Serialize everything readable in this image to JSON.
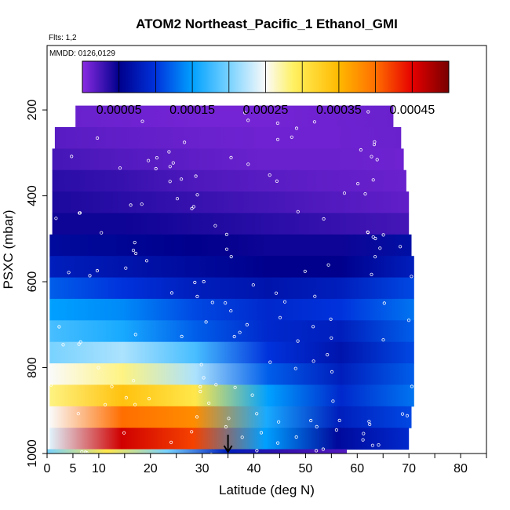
{
  "chart_data": {
    "type": "heatmap",
    "title": "ATOM2 Northeast_Pacific_1 Ethanol_GMI",
    "flights_label": "Flts: 1,2",
    "dates_label": "MMDD: 0126,0129",
    "xlabel": "Latitude (deg N)",
    "ylabel": "PSXC (mbar)",
    "xlim": [
      0,
      85
    ],
    "ylim": [
      1000,
      50
    ],
    "x_ticks": [
      "0",
      "5",
      "10",
      "20",
      "30",
      "40",
      "50",
      "60",
      "70",
      "80"
    ],
    "y_ticks": [
      "200",
      "400",
      "600",
      "800",
      "1000"
    ],
    "colorbar": {
      "range": [
        0,
        0.0005
      ],
      "tick_labels": [
        "0.00005",
        "0.00015",
        "0.00025",
        "0.00035",
        "0.00045"
      ],
      "tick_values": [
        5e-05,
        0.00015,
        0.00025,
        0.00035,
        0.00045
      ]
    },
    "arrow_marker_lat": 35,
    "layers": [
      {
        "p_top": 190,
        "p_bot": 240,
        "lat_min": 5.5,
        "lat_max": 67.0,
        "values": [
          1.2e-05,
          1e-05,
          8e-06,
          8e-06,
          1e-05,
          1.2e-05
        ]
      },
      {
        "p_top": 240,
        "p_bot": 290,
        "lat_min": 1.5,
        "lat_max": 68.5,
        "values": [
          1.8e-05,
          1.5e-05,
          1.2e-05,
          1e-05,
          1e-05,
          1.2e-05
        ]
      },
      {
        "p_top": 290,
        "p_bot": 340,
        "lat_min": 1.0,
        "lat_max": 69.0,
        "values": [
          2.5e-05,
          2e-05,
          1.6e-05,
          1.2e-05,
          1.2e-05,
          1e-05
        ]
      },
      {
        "p_top": 340,
        "p_bot": 390,
        "lat_min": 1.0,
        "lat_max": 69.5,
        "values": [
          3.5e-05,
          3e-05,
          2.2e-05,
          1.8e-05,
          1.5e-05,
          1.2e-05
        ]
      },
      {
        "p_top": 390,
        "p_bot": 440,
        "lat_min": 1.0,
        "lat_max": 70.0,
        "values": [
          4e-05,
          3.5e-05,
          3e-05,
          2.5e-05,
          2e-05,
          1.5e-05
        ]
      },
      {
        "p_top": 440,
        "p_bot": 490,
        "lat_min": 1.0,
        "lat_max": 70.0,
        "values": [
          4.5e-05,
          4.5e-05,
          4e-05,
          3.5e-05,
          3e-05,
          2.5e-05
        ]
      },
      {
        "p_top": 490,
        "p_bot": 540,
        "lat_min": 0.5,
        "lat_max": 70.5,
        "values": [
          6e-05,
          5.5e-05,
          5e-05,
          4.5e-05,
          4.5e-05,
          6.5e-05
        ]
      },
      {
        "p_top": 540,
        "p_bot": 590,
        "lat_min": 0.5,
        "lat_max": 71.0,
        "values": [
          8e-05,
          7e-05,
          6e-05,
          5e-05,
          5e-05,
          8e-05
        ]
      },
      {
        "p_top": 590,
        "p_bot": 640,
        "lat_min": 0.5,
        "lat_max": 71.0,
        "values": [
          0.00012,
          0.0001,
          8e-05,
          7e-05,
          8e-05,
          0.00011
        ]
      },
      {
        "p_top": 640,
        "p_bot": 690,
        "lat_min": 0.5,
        "lat_max": 71.0,
        "values": [
          0.00015,
          0.00014,
          0.00011,
          9e-05,
          0.0001,
          0.00013
        ]
      },
      {
        "p_top": 690,
        "p_bot": 740,
        "lat_min": 0.5,
        "lat_max": 71.0,
        "values": [
          0.00018,
          0.00016,
          0.00012,
          9e-05,
          8e-05,
          0.00012
        ]
      },
      {
        "p_top": 740,
        "p_bot": 790,
        "lat_min": 0.5,
        "lat_max": 71.0,
        "values": [
          0.0002,
          0.00022,
          0.00018,
          0.0001,
          7e-05,
          0.00011
        ]
      },
      {
        "p_top": 790,
        "p_bot": 840,
        "lat_min": 0.5,
        "lat_max": 71.0,
        "values": [
          0.00025,
          0.00028,
          0.00022,
          0.00012,
          8e-05,
          0.00012
        ]
      },
      {
        "p_top": 840,
        "p_bot": 890,
        "lat_min": 0.5,
        "lat_max": 71.0,
        "values": [
          0.00028,
          0.00034,
          0.0003,
          0.00015,
          9e-05,
          0.00013
        ]
      },
      {
        "p_top": 890,
        "p_bot": 940,
        "lat_min": 0.5,
        "lat_max": 70.5,
        "values": [
          0.00025,
          0.0004,
          0.00038,
          0.00016,
          8e-05,
          0.00011
        ]
      },
      {
        "p_top": 940,
        "p_bot": 990,
        "lat_min": 0.5,
        "lat_max": 70.0,
        "values": [
          0.00024,
          0.00046,
          0.00042,
          0.00015,
          6e-05,
          9e-05
        ]
      },
      {
        "p_top": 990,
        "p_bot": 1010,
        "lat_min": 0.0,
        "lat_max": 58.0,
        "values": [
          0.0002,
          0.0003,
          0.0002,
          8e-05,
          3e-05,
          2e-05
        ]
      }
    ]
  }
}
